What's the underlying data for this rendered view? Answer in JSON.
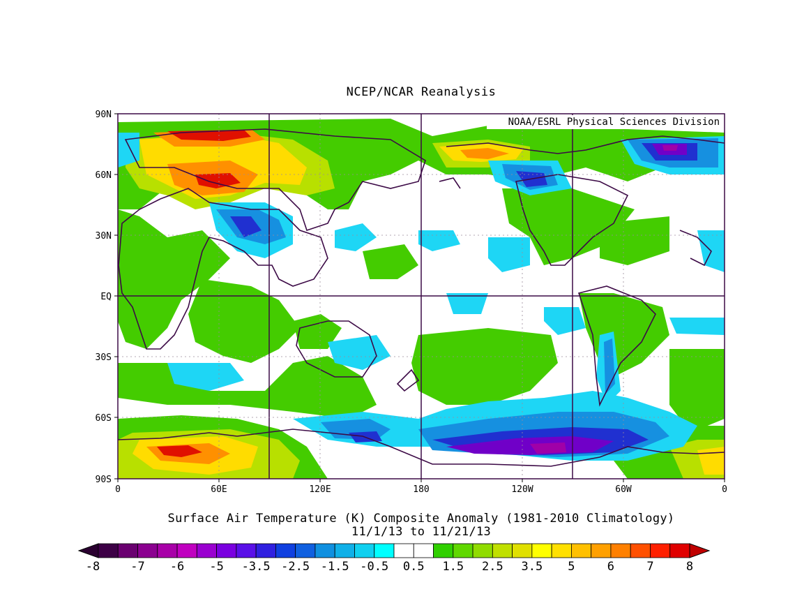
{
  "title": "NCEP/NCAR Reanalysis",
  "credit": "NOAA/ESRL Physical Sciences Division",
  "caption_line1": "Surface Air Temperature (K) Composite Anomaly (1981-2010 Climatology)",
  "caption_line2": "11/1/13  to 11/21/13",
  "lat_ticks": [
    "90N",
    "60N",
    "30N",
    "EQ",
    "30S",
    "60S",
    "90S"
  ],
  "lon_ticks": [
    "0",
    "60E",
    "120E",
    "180",
    "120W",
    "60W",
    "0"
  ],
  "colorbar": {
    "labels": [
      "-8",
      "-7",
      "-6",
      "-5",
      "-3.5",
      "-2.5",
      "-1.5",
      "-0.5",
      "0.5",
      "1.5",
      "2.5",
      "3.5",
      "5",
      "6",
      "7",
      "8"
    ],
    "colors": [
      "#3d0046",
      "#6a0070",
      "#8b0090",
      "#a800a8",
      "#c000c0",
      "#9a00d0",
      "#7a00e0",
      "#5a10e8",
      "#3020e0",
      "#1040e0",
      "#1060e0",
      "#1090e0",
      "#10b0e8",
      "#10d0f0",
      "#00ffff",
      "#ffffff",
      "#ffffff",
      "#30d000",
      "#60d800",
      "#90dc00",
      "#c0e000",
      "#e0e000",
      "#ffff00",
      "#ffe000",
      "#ffc000",
      "#ffa000",
      "#ff8000",
      "#ff5000",
      "#ff2000",
      "#e00000"
    ],
    "under_color": "#2a0030",
    "over_color": "#c00000"
  },
  "colors": {
    "land_outline": "#3c0a46",
    "grid_line": "#3c0a46",
    "neutral": "#ffffff",
    "weak_warm": "#44cc00",
    "warm": "#b8e000",
    "warmer": "#ffdc00",
    "hot": "#ff9000",
    "hottest": "#e01000",
    "weak_cool": "#1ed6f5",
    "cool": "#1690e0",
    "cold": "#2030d0",
    "colder": "#7000c8",
    "coldest": "#a000a8"
  }
}
